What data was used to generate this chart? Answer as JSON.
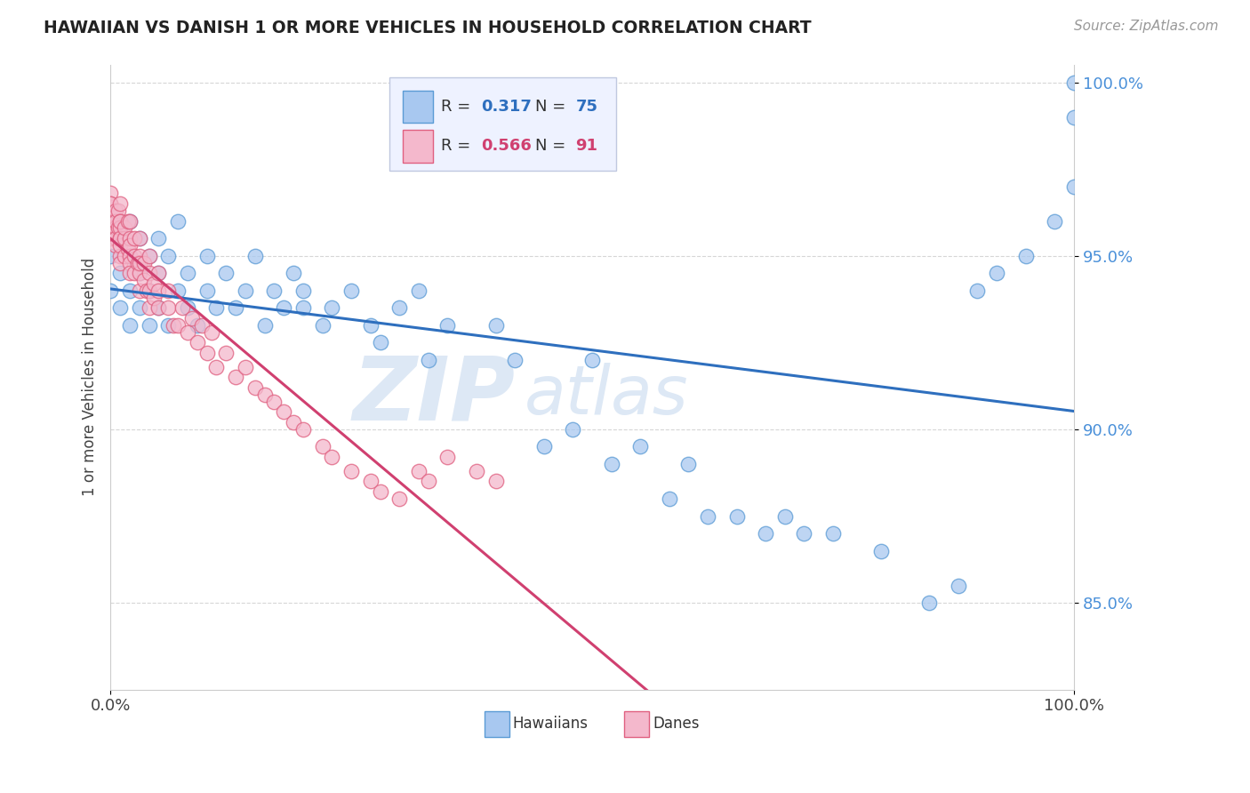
{
  "title": "HAWAIIAN VS DANISH 1 OR MORE VEHICLES IN HOUSEHOLD CORRELATION CHART",
  "source": "Source: ZipAtlas.com",
  "ylabel": "1 or more Vehicles in Household",
  "ytick_labels": [
    "85.0%",
    "90.0%",
    "95.0%",
    "100.0%"
  ],
  "ytick_values": [
    0.85,
    0.9,
    0.95,
    1.0
  ],
  "ymin": 0.825,
  "ymax": 1.005,
  "xmin": 0.0,
  "xmax": 1.0,
  "legend_hawaiians_R": "0.317",
  "legend_hawaiians_N": "75",
  "legend_danes_R": "0.566",
  "legend_danes_N": "91",
  "color_hawaiian_fill": "#a8c8f0",
  "color_hawaiian_edge": "#5b9bd5",
  "color_danish_fill": "#f4b8cc",
  "color_danish_edge": "#e06080",
  "color_trend_hawaiian": "#2e6fbe",
  "color_trend_danish": "#d04070",
  "watermark_zip": "ZIP",
  "watermark_atlas": "atlas",
  "background": "#ffffff",
  "legend_box_color": "#eef2ff",
  "legend_border_color": "#c0c8e0"
}
